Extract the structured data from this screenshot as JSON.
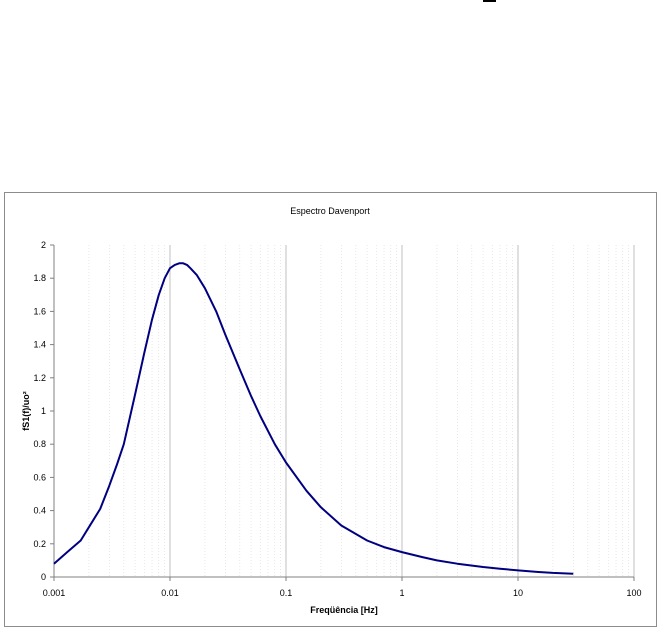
{
  "chart_data": {
    "type": "line",
    "title": "Espectro Davenport",
    "xlabel": "Freqüência [Hz]",
    "ylabel": "fS1(f)/uo²",
    "xscale": "log",
    "xlim": [
      0.001,
      100
    ],
    "ylim": [
      0,
      2
    ],
    "x_ticks": [
      0.001,
      0.01,
      0.1,
      1,
      10,
      100
    ],
    "x_tick_labels": [
      "0.001",
      "0.01",
      "0.1",
      "1",
      "10",
      "100"
    ],
    "y_ticks": [
      0,
      0.2,
      0.4,
      0.6,
      0.8,
      1,
      1.2,
      1.4,
      1.6,
      1.8,
      2
    ],
    "y_tick_labels": [
      "0",
      "0.2",
      "0.4",
      "0.6",
      "0.8",
      "1",
      "1.2",
      "1.4",
      "1.6",
      "1.8",
      "2"
    ],
    "grid": true,
    "legend": "none",
    "series": [
      {
        "color": "#000080",
        "x": [
          0.001,
          0.0013,
          0.0017,
          0.002,
          0.0025,
          0.003,
          0.0035,
          0.004,
          0.005,
          0.006,
          0.007,
          0.008,
          0.009,
          0.01,
          0.011,
          0.012,
          0.013,
          0.014,
          0.015,
          0.017,
          0.02,
          0.025,
          0.03,
          0.04,
          0.05,
          0.06,
          0.08,
          0.1,
          0.15,
          0.2,
          0.3,
          0.5,
          0.7,
          1,
          1.5,
          2,
          3,
          5,
          7,
          10,
          15,
          20,
          30
        ],
        "y": [
          0.08,
          0.15,
          0.22,
          0.3,
          0.41,
          0.55,
          0.68,
          0.8,
          1.1,
          1.35,
          1.55,
          1.7,
          1.8,
          1.86,
          1.88,
          1.89,
          1.89,
          1.88,
          1.86,
          1.82,
          1.74,
          1.6,
          1.46,
          1.25,
          1.09,
          0.97,
          0.8,
          0.69,
          0.52,
          0.42,
          0.31,
          0.22,
          0.18,
          0.15,
          0.12,
          0.1,
          0.08,
          0.06,
          0.05,
          0.04,
          0.03,
          0.025,
          0.02
        ]
      }
    ]
  }
}
